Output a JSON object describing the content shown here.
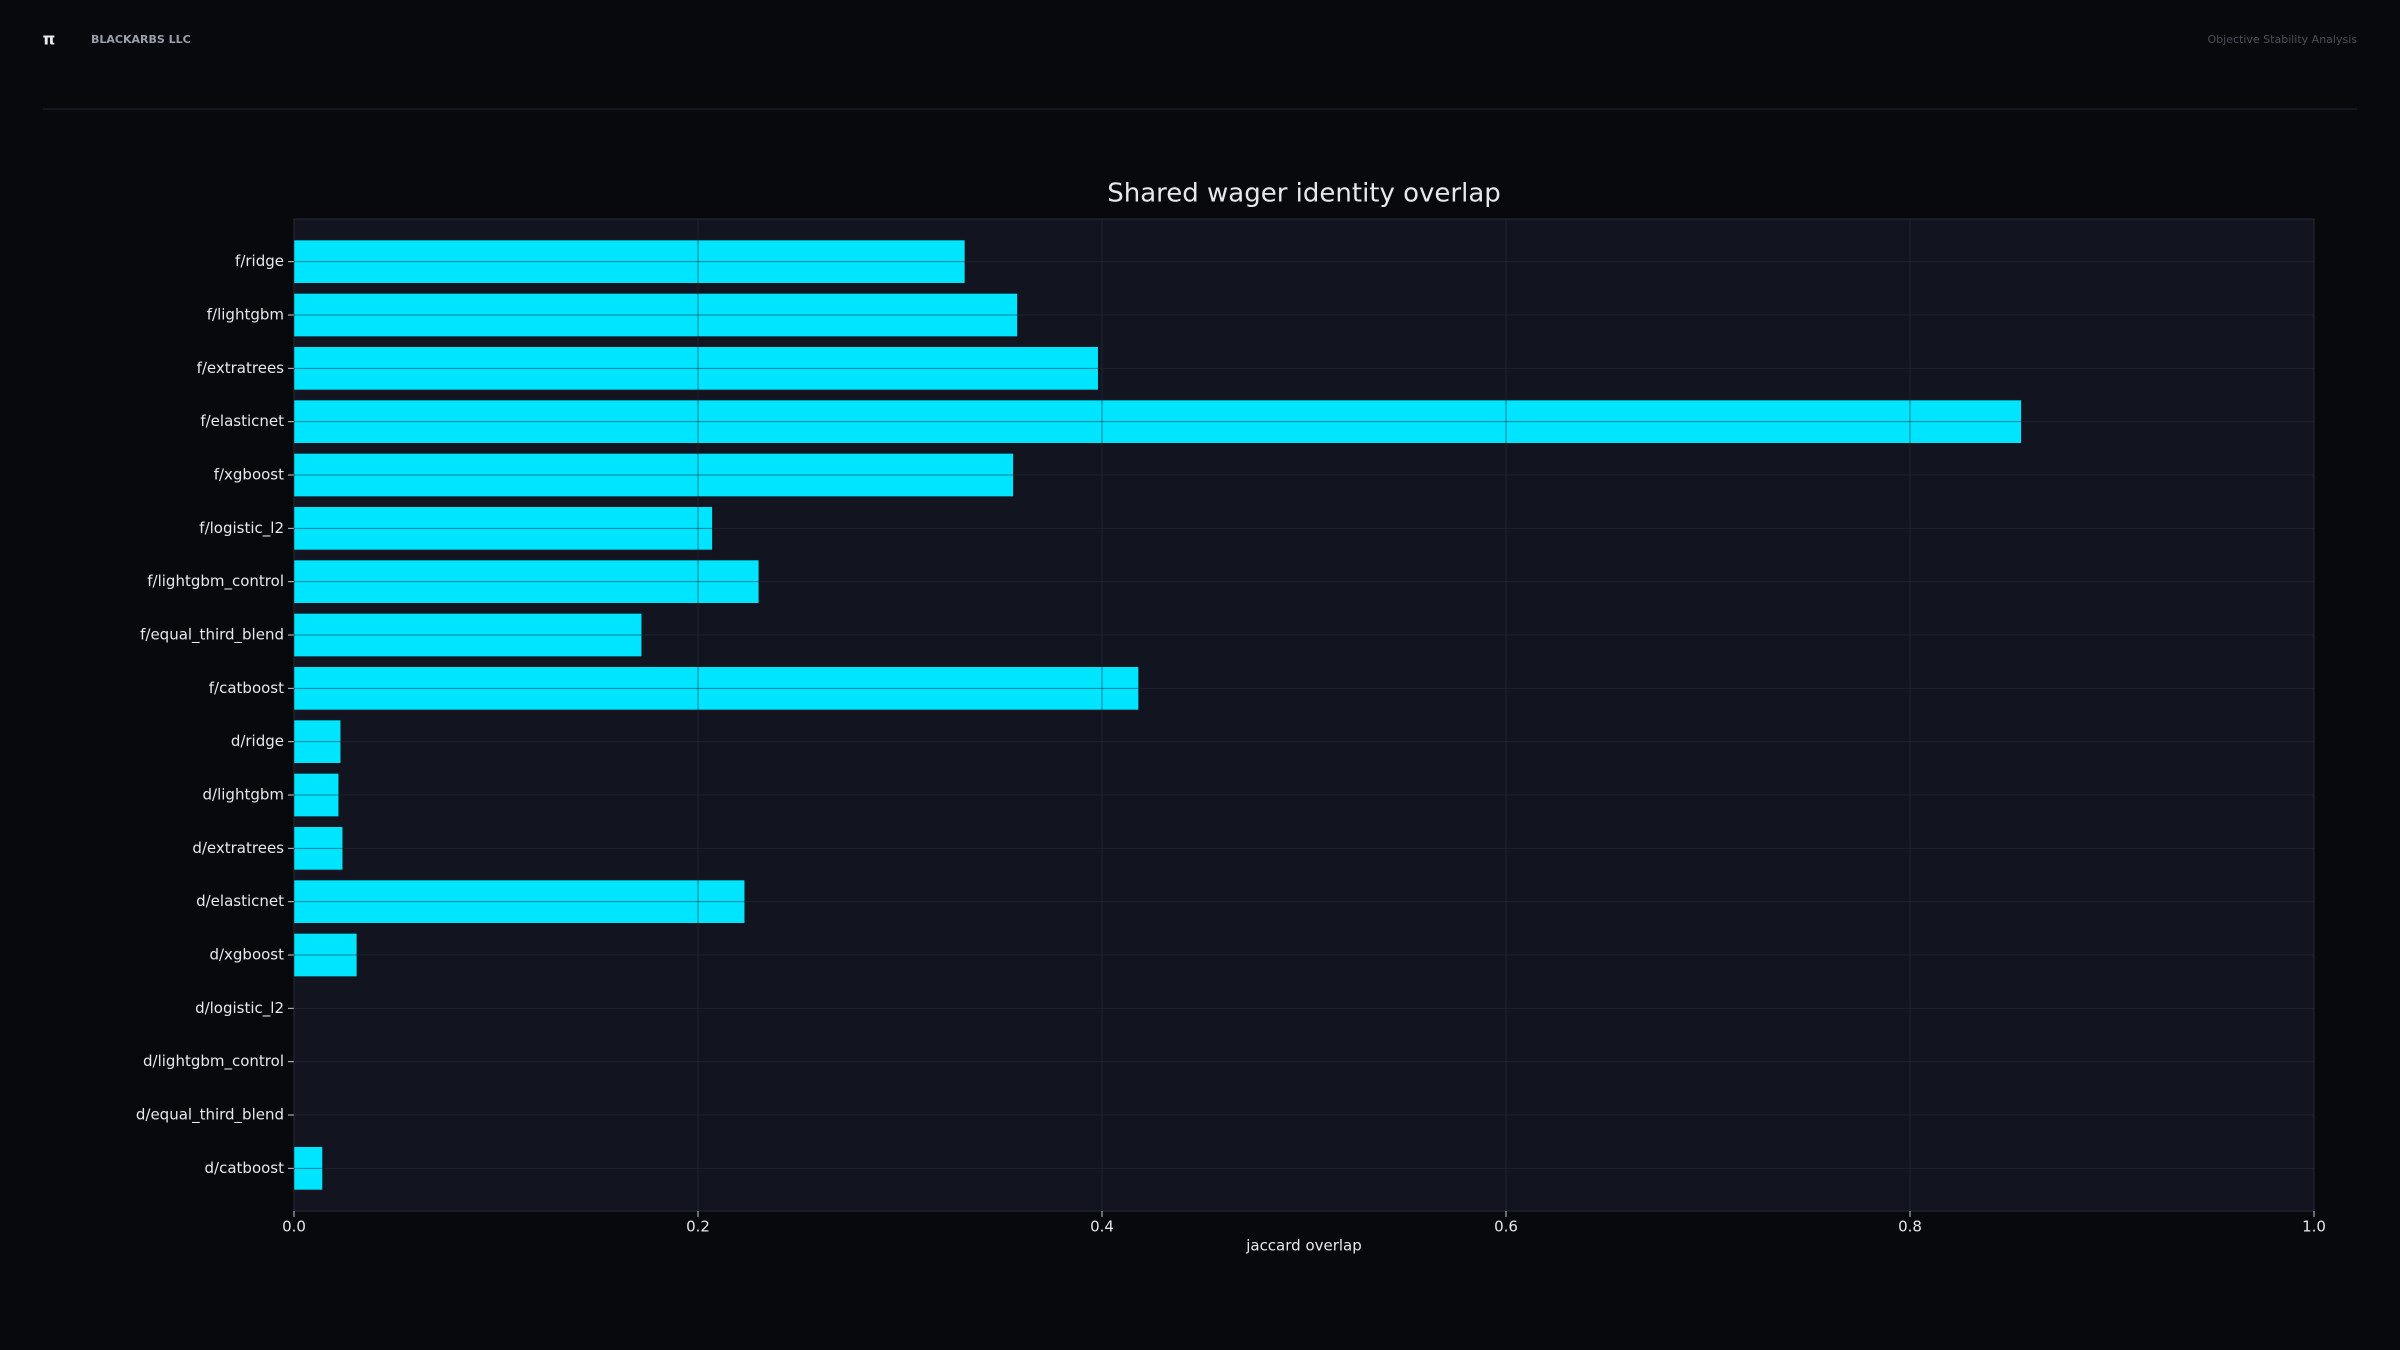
{
  "header": {
    "logo": "π",
    "brand": "BLACKARBS LLC",
    "subtitle": "Objective Stability Analysis"
  },
  "chart_data": {
    "type": "barh",
    "title": "Shared wager identity overlap",
    "x_label": "jaccard overlap",
    "categories": [
      "f/ridge",
      "f/lightgbm",
      "f/extratrees",
      "f/elasticnet",
      "f/xgboost",
      "f/logistic_l2",
      "f/lightgbm_control",
      "f/equal_third_blend",
      "f/catboost",
      "d/ridge",
      "d/lightgbm",
      "d/extratrees",
      "d/elasticnet",
      "d/xgboost",
      "d/logistic_l2",
      "d/lightgbm_control",
      "d/equal_third_blend",
      "d/catboost"
    ],
    "values": [
      0.332,
      0.358,
      0.398,
      0.855,
      0.356,
      0.207,
      0.23,
      0.172,
      0.418,
      0.023,
      0.022,
      0.024,
      0.223,
      0.031,
      0,
      0,
      0,
      0.014
    ],
    "color": "#00e5ff",
    "xlim": [
      0,
      1
    ],
    "xticks": [
      {
        "value": 0,
        "label": "0.0"
      },
      0.2,
      0.4,
      0.6,
      0.8,
      {
        "value": 1,
        "label": "1.0"
      }
    ],
    "grid": true
  }
}
